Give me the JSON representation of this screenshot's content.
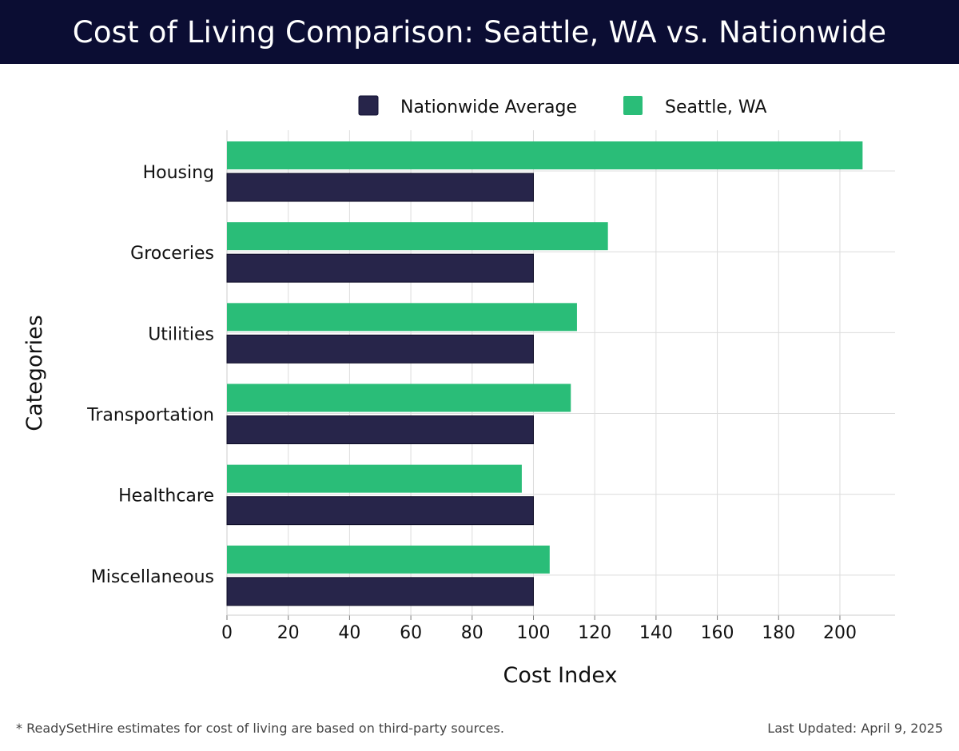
{
  "title": "Cost of Living Comparison: Seattle, WA vs. Nationwide",
  "footer": {
    "note": "* ReadySetHire estimates for cost of living are based on third-party sources.",
    "updated": "Last Updated: April 9, 2025"
  },
  "colors": {
    "header_bg": "#0b0d33",
    "nationwide": "#27254a",
    "seattle": "#2abd78"
  },
  "chart_data": {
    "type": "bar",
    "orientation": "horizontal",
    "title": "Cost of Living Comparison: Seattle, WA vs. Nationwide",
    "xlabel": "Cost Index",
    "ylabel": "Categories",
    "categories": [
      "Housing",
      "Groceries",
      "Utilities",
      "Transportation",
      "Healthcare",
      "Miscellaneous"
    ],
    "series": [
      {
        "name": "Nationwide Average",
        "values": [
          100,
          100,
          100,
          100,
          100,
          100
        ]
      },
      {
        "name": "Seattle, WA",
        "values": [
          207.4,
          124.3,
          114.2,
          112.2,
          96.2,
          105.3
        ]
      }
    ],
    "xlim": [
      0,
      218
    ],
    "xticks": [
      0,
      20,
      40,
      60,
      80,
      100,
      120,
      140,
      160,
      180,
      200
    ],
    "grid": true,
    "legend": "top-center"
  }
}
